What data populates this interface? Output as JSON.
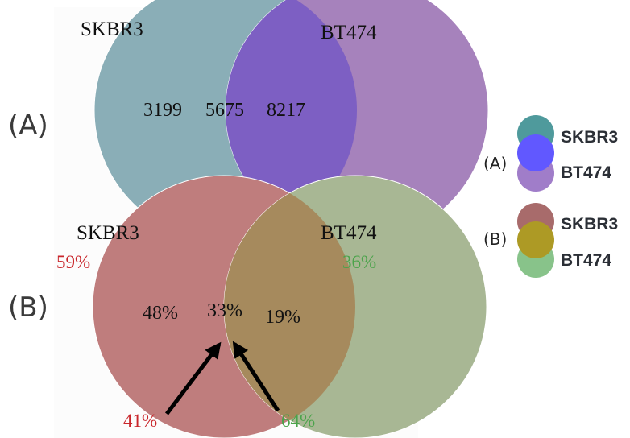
{
  "diagram_a": {
    "tag": "(A)",
    "set_left": "SKBR3",
    "set_right": "BT474",
    "only_left": "3199",
    "overlap": "5675",
    "only_right": "8217",
    "colors": {
      "left": "#8aaeb7",
      "right": "#a682bc",
      "overlap": "#7d5fc3"
    }
  },
  "diagram_b": {
    "tag": "(B)",
    "set_left": "SKBR3",
    "set_right": "BT474",
    "left_total": "59%",
    "right_total": "36%",
    "only_left": "48%",
    "overlap": "33%",
    "only_right": "19%",
    "arrow_left_value": "41%",
    "arrow_right_value": "64%",
    "colors": {
      "left": "#bf7d7d",
      "right": "#a8b794",
      "overlap": "#a68a5d",
      "red_text": "#c9262b",
      "green_text": "#4aa34a"
    }
  },
  "legend": {
    "a": {
      "tag": "(A)",
      "top": "SKBR3",
      "bottom": "BT474",
      "colors": {
        "top": "#4f9a9c",
        "mid": "#6158ff",
        "bottom": "#a07dc9"
      }
    },
    "b": {
      "tag": "(B)",
      "top": "SKBR3",
      "bottom": "BT474",
      "colors": {
        "top": "#a86b6b",
        "mid": "#ad9a25",
        "bottom": "#88c38a"
      }
    }
  }
}
